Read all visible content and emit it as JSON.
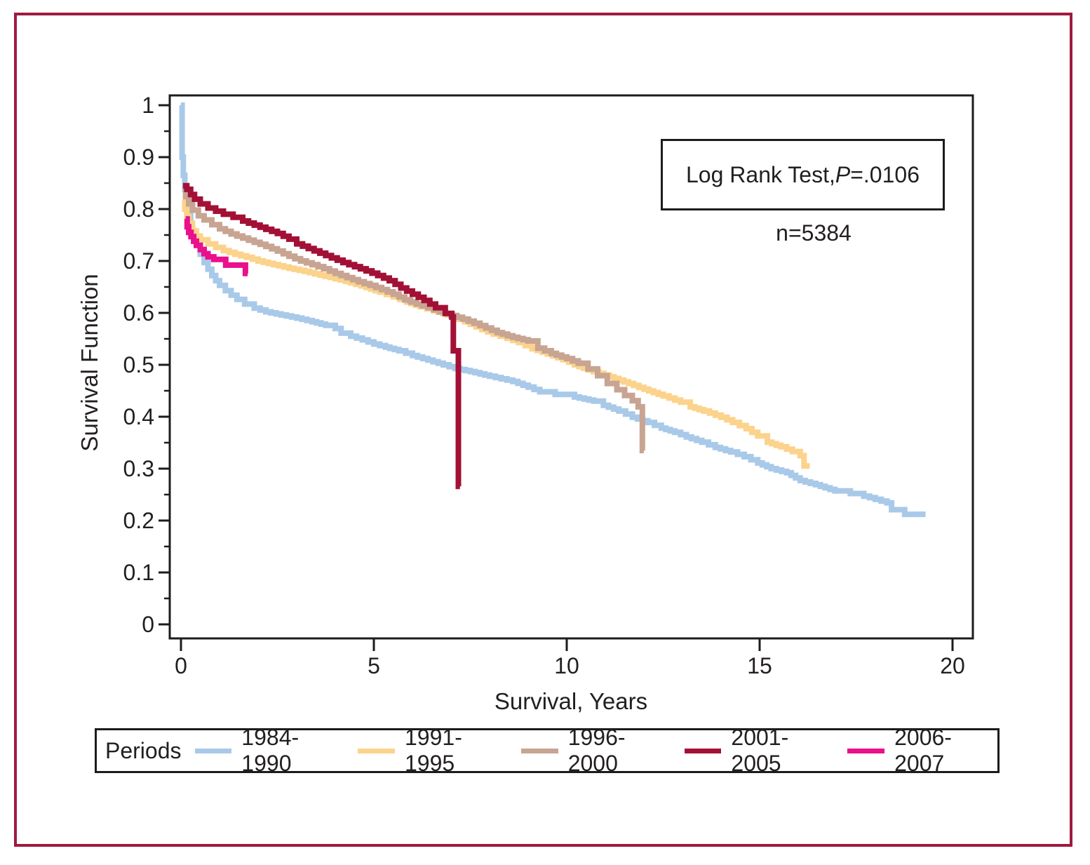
{
  "figure": {
    "outer_border_color": "#9e1a40",
    "axis_color": "#1c1c1c",
    "text_color": "#231f20",
    "background": "#ffffff"
  },
  "annotation": {
    "log_rank_prefix": "Log Rank Test, ",
    "p_symbol": "P",
    "p_value_suffix": "=.0106",
    "n_label": "n=5384"
  },
  "chart_data": {
    "type": "line",
    "subtype": "kaplan-meier-step-curves",
    "title": "",
    "xlabel": "Survival, Years",
    "ylabel": "Survival Function",
    "xlim": [
      -0.3,
      20.5
    ],
    "ylim": [
      -0.03,
      1.02
    ],
    "xticks": [
      0,
      5,
      10,
      15,
      20
    ],
    "yticks": [
      0,
      0.1,
      0.2,
      0.3,
      0.4,
      0.5,
      0.6,
      0.7,
      0.8,
      0.9,
      1
    ],
    "ytick_labels": [
      "0",
      "0.1",
      "0.2",
      "0.3",
      "0.4",
      "0.5",
      "0.6",
      "0.7",
      "0.8",
      "0.9",
      "1"
    ],
    "y_minor_ticks": [
      0.05,
      0.15,
      0.25,
      0.35,
      0.45,
      0.55,
      0.65,
      0.75,
      0.85,
      0.95
    ],
    "grid": false,
    "legend_title": "Periods",
    "legend_position": "bottom",
    "series": [
      {
        "name": "1984-1990",
        "color": "#a9c9e9",
        "width": 8,
        "points": [
          [
            0,
            1.0
          ],
          [
            0.03,
            0.9
          ],
          [
            0.06,
            0.865
          ],
          [
            0.1,
            0.838
          ],
          [
            0.15,
            0.812
          ],
          [
            0.2,
            0.79
          ],
          [
            0.25,
            0.772
          ],
          [
            0.3,
            0.757
          ],
          [
            0.4,
            0.733
          ],
          [
            0.5,
            0.713
          ],
          [
            0.6,
            0.697
          ],
          [
            0.7,
            0.684
          ],
          [
            0.8,
            0.672
          ],
          [
            0.9,
            0.662
          ],
          [
            1.0,
            0.653
          ],
          [
            1.15,
            0.643
          ],
          [
            1.3,
            0.634
          ],
          [
            1.45,
            0.626
          ],
          [
            1.65,
            0.617
          ],
          [
            1.9,
            0.609
          ],
          [
            2.2,
            0.602
          ],
          [
            2.6,
            0.596
          ],
          [
            3.0,
            0.59
          ],
          [
            3.4,
            0.583
          ],
          [
            3.75,
            0.576
          ],
          [
            4.0,
            0.57
          ],
          [
            4.15,
            0.561
          ],
          [
            4.4,
            0.555
          ],
          [
            4.7,
            0.548
          ],
          [
            5.0,
            0.54
          ],
          [
            5.3,
            0.534
          ],
          [
            5.65,
            0.527
          ],
          [
            6.0,
            0.518
          ],
          [
            6.4,
            0.509
          ],
          [
            6.8,
            0.5
          ],
          [
            7.1,
            0.493
          ],
          [
            7.5,
            0.487
          ],
          [
            8.0,
            0.478
          ],
          [
            8.6,
            0.468
          ],
          [
            9.0,
            0.457
          ],
          [
            9.3,
            0.448
          ],
          [
            9.7,
            0.443
          ],
          [
            10.2,
            0.438
          ],
          [
            10.7,
            0.43
          ],
          [
            10.95,
            0.422
          ],
          [
            11.35,
            0.411
          ],
          [
            11.7,
            0.399
          ],
          [
            12.1,
            0.389
          ],
          [
            12.45,
            0.378
          ],
          [
            12.8,
            0.37
          ],
          [
            13.1,
            0.361
          ],
          [
            13.5,
            0.351
          ],
          [
            13.85,
            0.341
          ],
          [
            14.25,
            0.332
          ],
          [
            14.6,
            0.323
          ],
          [
            14.95,
            0.311
          ],
          [
            15.3,
            0.3
          ],
          [
            15.7,
            0.292
          ],
          [
            16.05,
            0.277
          ],
          [
            16.45,
            0.269
          ],
          [
            16.95,
            0.257
          ],
          [
            17.35,
            0.252
          ],
          [
            17.7,
            0.247
          ],
          [
            18.0,
            0.241
          ],
          [
            18.3,
            0.234
          ],
          [
            18.38,
            0.234
          ],
          [
            18.42,
            0.221
          ],
          [
            18.72,
            0.221
          ],
          [
            18.76,
            0.212
          ],
          [
            19.3,
            0.212
          ]
        ]
      },
      {
        "name": "1991-1995",
        "color": "#fbd38c",
        "width": 8,
        "points": [
          [
            0.05,
            0.818
          ],
          [
            0.1,
            0.8
          ],
          [
            0.15,
            0.786
          ],
          [
            0.2,
            0.773
          ],
          [
            0.3,
            0.758
          ],
          [
            0.4,
            0.748
          ],
          [
            0.5,
            0.741
          ],
          [
            0.7,
            0.733
          ],
          [
            0.9,
            0.726
          ],
          [
            1.1,
            0.72
          ],
          [
            1.4,
            0.713
          ],
          [
            1.7,
            0.707
          ],
          [
            2.0,
            0.7
          ],
          [
            2.4,
            0.693
          ],
          [
            2.8,
            0.686
          ],
          [
            3.2,
            0.68
          ],
          [
            3.6,
            0.673
          ],
          [
            4.0,
            0.666
          ],
          [
            4.4,
            0.658
          ],
          [
            4.8,
            0.649
          ],
          [
            5.15,
            0.64
          ],
          [
            5.5,
            0.631
          ],
          [
            5.85,
            0.621
          ],
          [
            6.2,
            0.612
          ],
          [
            6.55,
            0.604
          ],
          [
            6.9,
            0.596
          ],
          [
            7.2,
            0.588
          ],
          [
            7.5,
            0.578
          ],
          [
            7.8,
            0.568
          ],
          [
            8.1,
            0.559
          ],
          [
            8.45,
            0.551
          ],
          [
            8.75,
            0.543
          ],
          [
            9.1,
            0.531
          ],
          [
            9.5,
            0.521
          ],
          [
            9.9,
            0.51
          ],
          [
            10.2,
            0.5
          ],
          [
            10.55,
            0.49
          ],
          [
            11.1,
            0.477
          ],
          [
            11.6,
            0.464
          ],
          [
            12.0,
            0.453
          ],
          [
            12.5,
            0.44
          ],
          [
            12.95,
            0.428
          ],
          [
            13.2,
            0.419
          ],
          [
            13.55,
            0.411
          ],
          [
            14.0,
            0.399
          ],
          [
            14.3,
            0.389
          ],
          [
            14.65,
            0.377
          ],
          [
            14.95,
            0.363
          ],
          [
            15.2,
            0.351
          ],
          [
            15.55,
            0.342
          ],
          [
            15.85,
            0.333
          ],
          [
            16.05,
            0.325
          ],
          [
            16.12,
            0.325
          ],
          [
            16.15,
            0.305
          ],
          [
            16.3,
            0.305
          ]
        ]
      },
      {
        "name": "1996-2000",
        "color": "#c8a492",
        "width": 8,
        "points": [
          [
            0.05,
            0.84
          ],
          [
            0.12,
            0.824
          ],
          [
            0.2,
            0.81
          ],
          [
            0.3,
            0.798
          ],
          [
            0.45,
            0.787
          ],
          [
            0.6,
            0.779
          ],
          [
            0.8,
            0.77
          ],
          [
            1.0,
            0.762
          ],
          [
            1.3,
            0.752
          ],
          [
            1.6,
            0.744
          ],
          [
            1.9,
            0.736
          ],
          [
            2.2,
            0.728
          ],
          [
            2.5,
            0.719
          ],
          [
            2.8,
            0.709
          ],
          [
            3.1,
            0.7
          ],
          [
            3.4,
            0.693
          ],
          [
            3.7,
            0.685
          ],
          [
            4.0,
            0.676
          ],
          [
            4.3,
            0.668
          ],
          [
            4.6,
            0.66
          ],
          [
            4.9,
            0.653
          ],
          [
            5.2,
            0.645
          ],
          [
            5.5,
            0.636
          ],
          [
            5.8,
            0.625
          ],
          [
            6.1,
            0.617
          ],
          [
            6.4,
            0.61
          ],
          [
            6.7,
            0.602
          ],
          [
            7.0,
            0.595
          ],
          [
            7.3,
            0.588
          ],
          [
            7.6,
            0.58
          ],
          [
            7.9,
            0.571
          ],
          [
            8.2,
            0.562
          ],
          [
            8.6,
            0.553
          ],
          [
            9.0,
            0.546
          ],
          [
            9.25,
            0.532
          ],
          [
            9.6,
            0.522
          ],
          [
            10.0,
            0.512
          ],
          [
            10.3,
            0.503
          ],
          [
            10.55,
            0.492
          ],
          [
            10.8,
            0.479
          ],
          [
            11.05,
            0.464
          ],
          [
            11.3,
            0.452
          ],
          [
            11.5,
            0.441
          ],
          [
            11.7,
            0.431
          ],
          [
            11.85,
            0.419
          ],
          [
            11.93,
            0.419
          ],
          [
            11.96,
            0.335
          ],
          [
            12.0,
            0.335
          ]
        ]
      },
      {
        "name": "2001-2005",
        "color": "#a31036",
        "width": 8,
        "points": [
          [
            0.05,
            0.845
          ],
          [
            0.15,
            0.838
          ],
          [
            0.25,
            0.828
          ],
          [
            0.35,
            0.819
          ],
          [
            0.5,
            0.81
          ],
          [
            0.7,
            0.802
          ],
          [
            0.9,
            0.796
          ],
          [
            1.1,
            0.79
          ],
          [
            1.35,
            0.784
          ],
          [
            1.6,
            0.777
          ],
          [
            1.9,
            0.769
          ],
          [
            2.2,
            0.761
          ],
          [
            2.5,
            0.753
          ],
          [
            2.8,
            0.742
          ],
          [
            3.0,
            0.733
          ],
          [
            3.3,
            0.724
          ],
          [
            3.6,
            0.715
          ],
          [
            3.9,
            0.706
          ],
          [
            4.2,
            0.697
          ],
          [
            4.5,
            0.689
          ],
          [
            4.8,
            0.681
          ],
          [
            5.1,
            0.672
          ],
          [
            5.4,
            0.662
          ],
          [
            5.7,
            0.648
          ],
          [
            6.0,
            0.636
          ],
          [
            6.3,
            0.624
          ],
          [
            6.6,
            0.61
          ],
          [
            6.85,
            0.599
          ],
          [
            7.02,
            0.592
          ],
          [
            7.06,
            0.527
          ],
          [
            7.17,
            0.527
          ],
          [
            7.19,
            0.266
          ],
          [
            7.23,
            0.266
          ]
        ]
      },
      {
        "name": "2006-2007",
        "color": "#ea0f8d",
        "width": 8,
        "points": [
          [
            0.12,
            0.781
          ],
          [
            0.16,
            0.766
          ],
          [
            0.2,
            0.755
          ],
          [
            0.26,
            0.747
          ],
          [
            0.33,
            0.738
          ],
          [
            0.4,
            0.73
          ],
          [
            0.5,
            0.722
          ],
          [
            0.6,
            0.714
          ],
          [
            0.7,
            0.708
          ],
          [
            0.85,
            0.703
          ],
          [
            1.13,
            0.703
          ],
          [
            1.16,
            0.692
          ],
          [
            1.64,
            0.692
          ],
          [
            1.67,
            0.676
          ],
          [
            1.73,
            0.676
          ]
        ]
      }
    ]
  }
}
